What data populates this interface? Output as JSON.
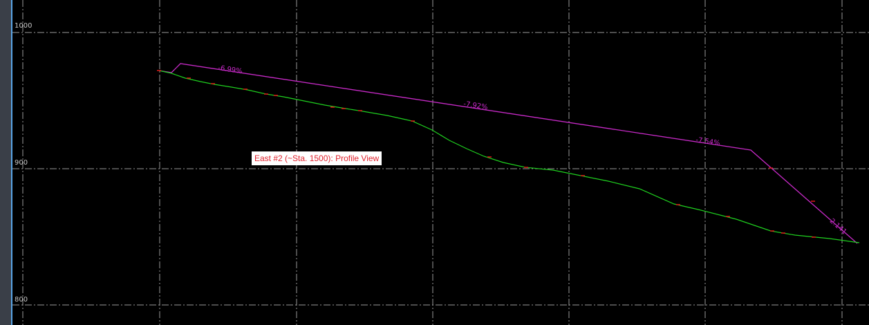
{
  "view_title": "East #2 (~Sta. 1500): Profile View",
  "elevation_labels": [
    "1000",
    "900",
    "800"
  ],
  "grade_labels": [
    "-6.99%",
    "-7.92%",
    "-7.54%",
    "-2.141"
  ],
  "colors": {
    "background": "#000000",
    "grid": "#9a9a9a",
    "existing_ground": "#1fd11f",
    "proposed_profile": "#c82ac8",
    "points": "#e01818",
    "label_text": "#e0202b"
  }
}
